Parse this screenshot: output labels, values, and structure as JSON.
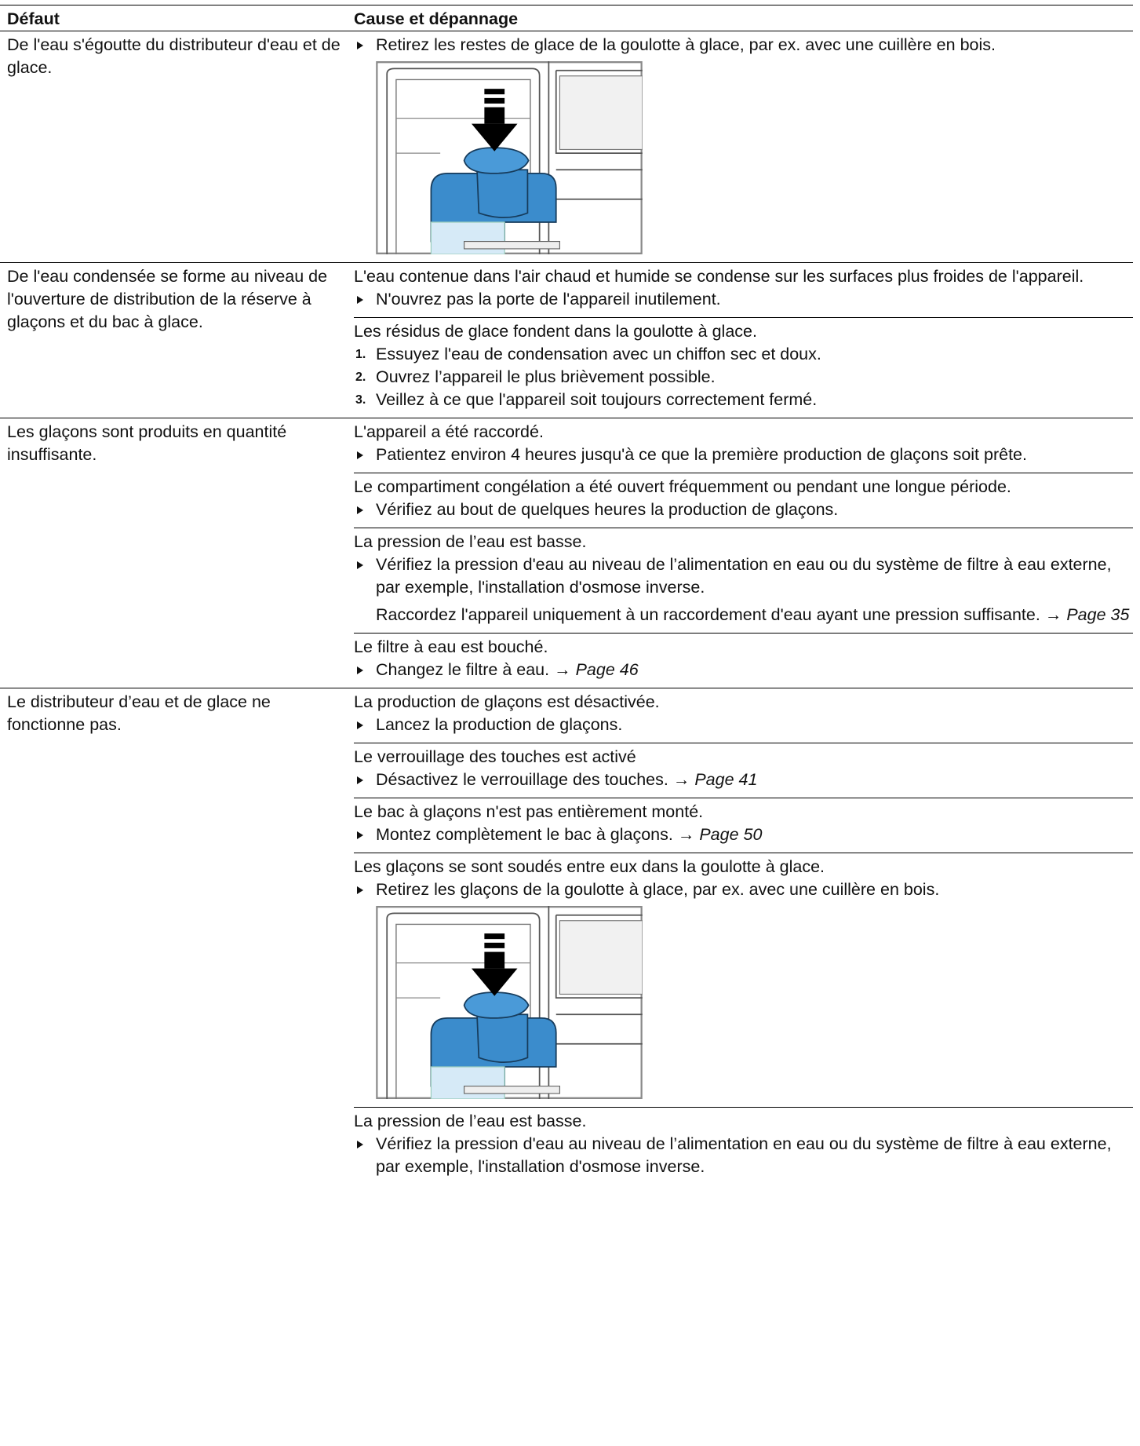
{
  "header": {
    "fault": "Défaut",
    "cause": "Cause et dépannage"
  },
  "rows": [
    {
      "fault": "De l'eau s'égoutte du distributeur d'eau et de glace.",
      "causes": [
        {
          "steps": [
            {
              "text": "Retirez les restes de glace de la goulotte à glace, par ex. avec une cuillère en bois."
            }
          ]
        }
      ]
    },
    {
      "fault": "De l'eau condensée se forme au niveau de l'ouverture de distribution de la réserve à glaçons et du bac à glace.",
      "causes": [
        {
          "text": "L'eau contenue dans l'air chaud et humide se condense sur les surfaces plus froides de l'appareil.",
          "steps": [
            {
              "text": "N'ouvrez pas la porte de l'appareil inutilement."
            }
          ]
        },
        {
          "text": "Les résidus de glace fondent dans la goulotte à glace.",
          "steps": [
            {
              "marker": "1.",
              "text": "Essuyez l'eau de condensation avec un chiffon sec et doux."
            },
            {
              "marker": "2.",
              "text": "Ouvrez l’appareil le plus brièvement possible."
            },
            {
              "marker": "3.",
              "text": "Veillez à ce que l'appareil soit toujours correctement fermé."
            }
          ]
        }
      ]
    },
    {
      "fault": "Les glaçons sont produits en quantité insuffisante.",
      "causes": [
        {
          "text": "L'appareil a été raccordé.",
          "steps": [
            {
              "text": "Patientez environ 4 heures jusqu'à ce que la première production de glaçons soit prête."
            }
          ]
        },
        {
          "text": "Le compartiment congélation a été ouvert fréquemment ou pendant une longue période.",
          "steps": [
            {
              "text": "Vérifiez au bout de quelques heures la production de glaçons."
            }
          ]
        },
        {
          "text": "La pression de l’eau est basse.",
          "steps": [
            {
              "text": "Vérifiez la pression d'eau au niveau de l’alimentation en eau ou du système de filtre à eau externe, par exemple, l'installation d'osmose inverse."
            },
            {
              "text": "Raccordez l'appareil uniquement à un raccordement d'eau ayant une pression suffisante.",
              "arrow": "→",
              "page": "Page 35"
            }
          ]
        },
        {
          "text": "Le filtre à eau est bouché.",
          "steps": [
            {
              "text": "Changez le filtre à eau.",
              "arrow": "→",
              "page": "Page 46"
            }
          ]
        }
      ]
    },
    {
      "fault": "Le distributeur d’eau et de glace ne fonctionne pas.",
      "causes": [
        {
          "text": "La production de glaçons est désactivée.",
          "steps": [
            {
              "text": "Lancez la production de glaçons."
            }
          ]
        },
        {
          "text": "Le verrouillage des touches est activé",
          "steps": [
            {
              "text": "Désactivez le verrouillage des touches.",
              "arrow": "→",
              "page": "Page 41"
            }
          ]
        },
        {
          "text": "Le bac à glaçons n'est pas entièrement monté.",
          "steps": [
            {
              "text": "Montez complètement le bac à glaçons.",
              "arrow": "→",
              "page": "Page 50"
            }
          ]
        },
        {
          "text": "Les glaçons se sont soudés entre eux dans la goulotte à glace.",
          "steps": [
            {
              "text": "Retirez les glaçons de la goulotte à glace, par ex. avec une cuillère en bois."
            }
          ]
        },
        {
          "text": "La pression de l’eau est basse.",
          "steps": [
            {
              "text": "Vérifiez la pression d'eau au niveau de l’alimentation en eau ou du système de filtre à eau externe, par exemple, l'installation d'osmose inverse."
            }
          ]
        }
      ]
    }
  ]
}
